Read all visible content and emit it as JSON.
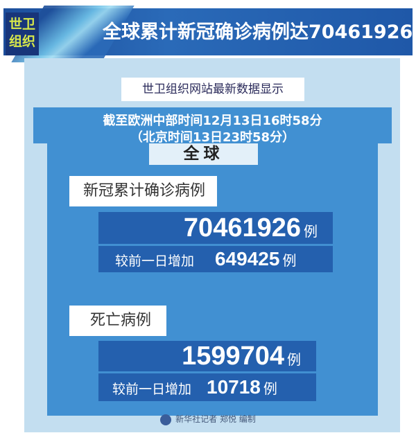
{
  "header": {
    "badge_line1": "世卫",
    "badge_line2": "组织",
    "title": "全球累计新冠确诊病例达70461926例"
  },
  "subtitle": "世卫组织网站最新数据显示",
  "time": {
    "line1": "截至欧洲中部时间12月13日16时58分",
    "line2": "（北京时间13日23时58分）"
  },
  "scope": "全球",
  "confirmed": {
    "label": "新冠累计确诊病例",
    "value": "70461926",
    "unit": "例",
    "increase_label": "较前一日增加",
    "increase_value": "649425",
    "increase_unit": "例"
  },
  "deaths": {
    "label": "死亡病例",
    "value": "1599704",
    "unit": "例",
    "increase_label": "较前一日增加",
    "increase_value": "10718",
    "increase_unit": "例"
  },
  "footer": {
    "credit": "新华社记者 郑悦 编制",
    "logo_icon": "xinhua-logo-icon"
  },
  "colors": {
    "header": "#1d4f9c",
    "panel": "#c3def0",
    "section": "#4190d2",
    "numbox": "#2460ae",
    "badge_text": "#d8e84a"
  }
}
